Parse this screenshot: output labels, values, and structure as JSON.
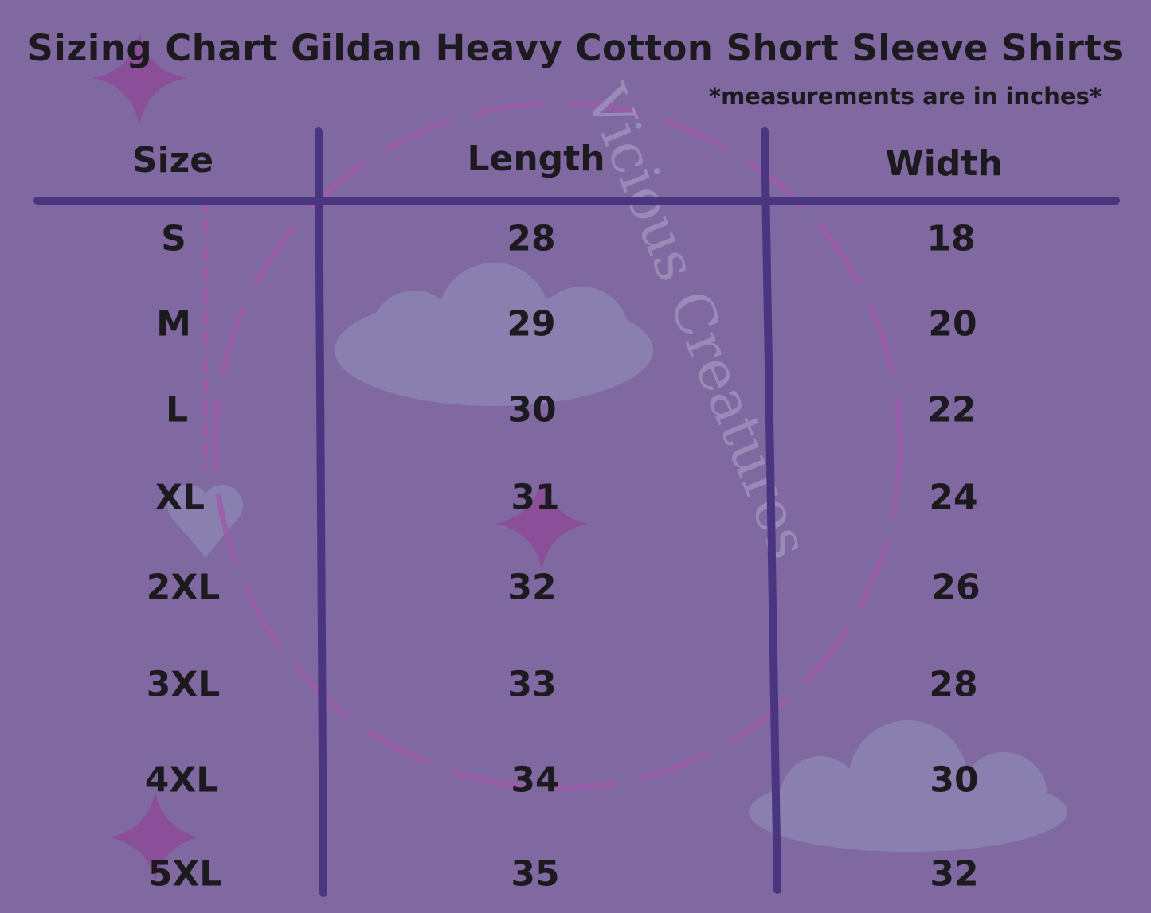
{
  "title": "Sizing Chart Gildan Heavy Cotton Short Sleeve Shirts",
  "subtitle": "*measurements are in inches*",
  "watermark": "Vicious Creatures",
  "colors": {
    "background": "#8068a0",
    "lines": "#4a3580",
    "text": "#1c1a1f",
    "bones": "#9c5aa8",
    "clouds": "#8a80b0"
  },
  "table": {
    "headers": [
      "Size",
      "Length",
      "Width"
    ],
    "rows": [
      {
        "size": "S",
        "length": "28",
        "width": "18"
      },
      {
        "size": "M",
        "length": "29",
        "width": "20"
      },
      {
        "size": "L",
        "length": "30",
        "width": "22"
      },
      {
        "size": "XL",
        "length": "31",
        "width": "24"
      },
      {
        "size": "2XL",
        "length": "32",
        "width": "26"
      },
      {
        "size": "3XL",
        "length": "33",
        "width": "28"
      },
      {
        "size": "4XL",
        "length": "34",
        "width": "30"
      },
      {
        "size": "5XL",
        "length": "35",
        "width": "32"
      }
    ]
  }
}
